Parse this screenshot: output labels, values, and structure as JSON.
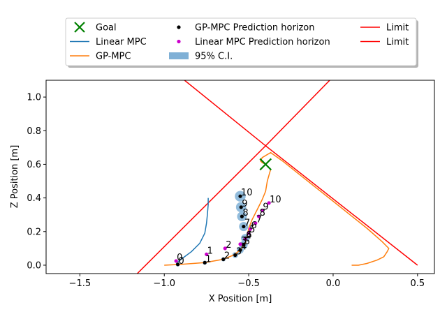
{
  "chart_data": {
    "type": "line",
    "xlabel": "X Position [m]",
    "ylabel": "Z Position [m]",
    "xlim": [
      -1.7,
      0.6
    ],
    "ylim": [
      -0.05,
      1.1
    ],
    "x_ticks": [
      -1.5,
      -1.0,
      -0.5,
      0.0,
      0.5
    ],
    "x_tick_labels": [
      "−1.5",
      "−1.0",
      "−0.5",
      "0.0",
      "0.5"
    ],
    "y_ticks": [
      0.0,
      0.2,
      0.4,
      0.6,
      0.8,
      1.0
    ],
    "y_tick_labels": [
      "0.0",
      "0.2",
      "0.4",
      "0.6",
      "0.8",
      "1.0"
    ],
    "grid": false,
    "legend_placement": "above plot, 3 columns",
    "colors": {
      "goal": "#008000",
      "linear_mpc": "#1f77b4",
      "gp_mpc": "#ff7f0e",
      "gp_pred": "#000000",
      "lin_pred": "#cc00cc",
      "ci": "#7fb0d6",
      "limit": "#ff0000"
    },
    "legend": [
      {
        "key": "goal",
        "label": "Goal",
        "marker": "x"
      },
      {
        "key": "gp_pred",
        "label": "GP-MPC Prediction horizon",
        "marker": "dot"
      },
      {
        "key": "limit",
        "label": "Limit",
        "marker": "line"
      },
      {
        "key": "linear_mpc",
        "label": "Linear MPC",
        "marker": "line"
      },
      {
        "key": "lin_pred",
        "label": "Linear MPC Prediction horizon",
        "marker": "dot"
      },
      {
        "key": "limit",
        "label": "Limit",
        "marker": "line"
      },
      {
        "key": "gp_mpc",
        "label": "GP-MPC",
        "marker": "line"
      },
      {
        "key": "ci",
        "label": "95% C.I.",
        "marker": "patch"
      }
    ],
    "goal": {
      "x": -0.4,
      "y": 0.6
    },
    "limits": [
      {
        "name": "Limit",
        "x": [
          -1.16,
          -0.4,
          0.5
        ],
        "y": [
          -0.05,
          0.71,
          0.0
        ]
      },
      {
        "name": "Limit",
        "x": [
          -0.88,
          -0.4,
          -0.02
        ],
        "y": [
          1.1,
          0.71,
          1.1
        ]
      }
    ],
    "series": [
      {
        "name": "Linear MPC",
        "key": "linear_mpc",
        "x": [
          -0.92,
          -0.88,
          -0.84,
          -0.79,
          -0.76,
          -0.75,
          -0.745,
          -0.74,
          -0.74
        ],
        "y": [
          0.02,
          0.05,
          0.08,
          0.13,
          0.19,
          0.25,
          0.3,
          0.36,
          0.4
        ]
      },
      {
        "name": "GP-MPC",
        "key": "gp_mpc",
        "x": [
          -1.0,
          -0.9,
          -0.76,
          -0.65,
          -0.59,
          -0.55,
          -0.52,
          -0.51,
          -0.5,
          -0.48,
          -0.45,
          -0.42,
          -0.4,
          -0.39,
          -0.37,
          -0.4,
          -0.42,
          -0.43,
          -0.42,
          -0.37,
          -0.3,
          -0.2,
          -0.1,
          0.0,
          0.1,
          0.2,
          0.29,
          0.32,
          0.33,
          0.32,
          0.3,
          0.26,
          0.2,
          0.15,
          0.11
        ],
        "y": [
          0.0,
          0.005,
          0.015,
          0.035,
          0.06,
          0.09,
          0.13,
          0.17,
          0.22,
          0.27,
          0.33,
          0.39,
          0.44,
          0.5,
          0.57,
          0.6,
          0.61,
          0.62,
          0.64,
          0.67,
          0.62,
          0.54,
          0.46,
          0.38,
          0.3,
          0.22,
          0.14,
          0.11,
          0.1,
          0.08,
          0.05,
          0.03,
          0.01,
          0.0,
          0.0
        ]
      }
    ],
    "gp_prediction": {
      "x": [
        -0.92,
        -0.76,
        -0.65,
        -0.58,
        -0.55,
        -0.53,
        -0.52,
        -0.53,
        -0.54,
        -0.545,
        -0.55
      ],
      "y": [
        0.005,
        0.015,
        0.035,
        0.06,
        0.09,
        0.12,
        0.16,
        0.23,
        0.29,
        0.345,
        0.41
      ],
      "labels": [
        "0",
        "1",
        "2",
        "3",
        "4",
        "5",
        "6",
        "7",
        "8",
        "9",
        "10"
      ]
    },
    "gp_ci_radius": [
      0.003,
      0.005,
      0.008,
      0.011,
      0.013,
      0.015,
      0.016,
      0.017,
      0.018,
      0.019,
      0.02
    ],
    "linear_prediction": {
      "x": [
        -0.93,
        -0.75,
        -0.64,
        -0.55,
        -0.52,
        -0.5,
        -0.49,
        -0.46,
        -0.44,
        -0.42,
        -0.38
      ],
      "y": [
        0.025,
        0.065,
        0.1,
        0.125,
        0.155,
        0.19,
        0.215,
        0.25,
        0.29,
        0.325,
        0.37
      ],
      "labels": [
        "0",
        "1",
        "2",
        "3",
        "4",
        "5",
        "6",
        "7",
        "8",
        "9",
        "10"
      ]
    }
  }
}
